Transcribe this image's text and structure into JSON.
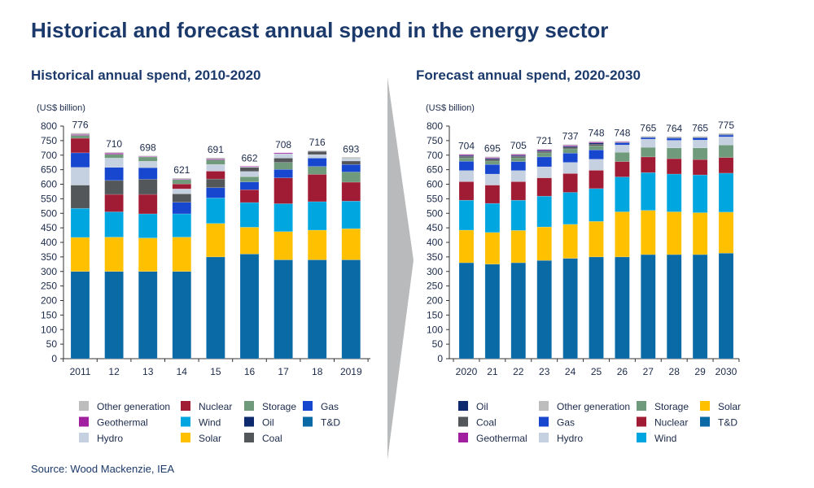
{
  "title": "Historical and forecast annual spend in the energy sector",
  "source": "Source: Wood Mackenzie, IEA",
  "colors": {
    "T&D": "#0a6aa6",
    "Solar": "#ffc000",
    "Wind": "#00a6e0",
    "Nuclear": "#a01c35",
    "Coal": "#53575a",
    "Hydro": "#c5d0e0",
    "Gas": "#1847cf",
    "Storage": "#6f9b7c",
    "Oil": "#0d2a6e",
    "Geothermal": "#a020a0",
    "Other generation": "#bdbdbd"
  },
  "chart_data": [
    {
      "type": "bar",
      "stacked": true,
      "title": "Historical annual spend, 2010-2020",
      "ylabel": "(US$ billion)",
      "ylim": [
        0,
        800
      ],
      "yticks": [
        0,
        50,
        100,
        150,
        200,
        250,
        300,
        350,
        400,
        450,
        500,
        550,
        600,
        650,
        700,
        750,
        800
      ],
      "grid": false,
      "legend_position": "bottom",
      "legend": [
        "Other generation",
        "Nuclear",
        "Storage",
        "Gas",
        "Geothermal",
        "Wind",
        "Oil",
        "T&D",
        "Hydro",
        "Solar",
        "Coal"
      ],
      "categories": [
        "2011",
        "12",
        "13",
        "14",
        "15",
        "16",
        "17",
        "18",
        "2019"
      ],
      "totals": [
        776,
        710,
        698,
        621,
        691,
        662,
        708,
        716,
        693
      ],
      "bars": [
        [
          [
            "T&D",
            300
          ],
          [
            "Solar",
            117
          ],
          [
            "Wind",
            100
          ],
          [
            "Coal",
            80
          ],
          [
            "Hydro",
            61
          ],
          [
            "Gas",
            50
          ],
          [
            "Nuclear",
            50
          ],
          [
            "Storage",
            10
          ],
          [
            "Geothermal",
            3
          ],
          [
            "Other generation",
            5
          ]
        ],
        [
          [
            "T&D",
            300
          ],
          [
            "Solar",
            118
          ],
          [
            "Wind",
            87
          ],
          [
            "Nuclear",
            60
          ],
          [
            "Coal",
            48
          ],
          [
            "Gas",
            45
          ],
          [
            "Hydro",
            32
          ],
          [
            "Storage",
            13
          ],
          [
            "Geothermal",
            4
          ],
          [
            "Other generation",
            3
          ]
        ],
        [
          [
            "T&D",
            300
          ],
          [
            "Solar",
            115
          ],
          [
            "Wind",
            83
          ],
          [
            "Nuclear",
            67
          ],
          [
            "Coal",
            52
          ],
          [
            "Gas",
            40
          ],
          [
            "Hydro",
            22
          ],
          [
            "Storage",
            15
          ],
          [
            "Geothermal",
            2
          ],
          [
            "Other generation",
            2
          ]
        ],
        [
          [
            "T&D",
            300
          ],
          [
            "Solar",
            118
          ],
          [
            "Wind",
            80
          ],
          [
            "Gas",
            40
          ],
          [
            "Coal",
            29
          ],
          [
            "Hydro",
            17
          ],
          [
            "Nuclear",
            17
          ],
          [
            "Storage",
            15
          ],
          [
            "Geothermal",
            2
          ],
          [
            "Other generation",
            3
          ]
        ],
        [
          [
            "T&D",
            350
          ],
          [
            "Solar",
            115
          ],
          [
            "Wind",
            88
          ],
          [
            "Gas",
            35
          ],
          [
            "Coal",
            30
          ],
          [
            "Nuclear",
            27
          ],
          [
            "Hydro",
            23
          ],
          [
            "Storage",
            16
          ],
          [
            "Geothermal",
            3
          ],
          [
            "Other generation",
            4
          ]
        ],
        [
          [
            "T&D",
            360
          ],
          [
            "Solar",
            92
          ],
          [
            "Wind",
            85
          ],
          [
            "Nuclear",
            44
          ],
          [
            "Gas",
            27
          ],
          [
            "Storage",
            18
          ],
          [
            "Hydro",
            18
          ],
          [
            "Coal",
            14
          ],
          [
            "Other generation",
            2
          ],
          [
            "Geothermal",
            2
          ]
        ],
        [
          [
            "T&D",
            340
          ],
          [
            "Solar",
            97
          ],
          [
            "Wind",
            96
          ],
          [
            "Nuclear",
            89
          ],
          [
            "Gas",
            29
          ],
          [
            "Storage",
            24
          ],
          [
            "Coal",
            15
          ],
          [
            "Hydro",
            15
          ],
          [
            "Geothermal",
            3
          ]
        ],
        [
          [
            "T&D",
            340
          ],
          [
            "Solar",
            102
          ],
          [
            "Wind",
            98
          ],
          [
            "Nuclear",
            94
          ],
          [
            "Storage",
            27
          ],
          [
            "Gas",
            29
          ],
          [
            "Hydro",
            12
          ],
          [
            "Coal",
            11
          ],
          [
            "Other generation",
            3
          ]
        ],
        [
          [
            "T&D",
            340
          ],
          [
            "Solar",
            107
          ],
          [
            "Wind",
            95
          ],
          [
            "Nuclear",
            65
          ],
          [
            "Storage",
            35
          ],
          [
            "Gas",
            26
          ],
          [
            "Coal",
            12
          ],
          [
            "Hydro",
            8
          ],
          [
            "Other generation",
            5
          ]
        ]
      ]
    },
    {
      "type": "bar",
      "stacked": true,
      "title": "Forecast annual spend, 2020-2030",
      "ylabel": "(US$ billion)",
      "ylim": [
        0,
        800
      ],
      "yticks": [
        0,
        50,
        100,
        150,
        200,
        250,
        300,
        350,
        400,
        450,
        500,
        550,
        600,
        650,
        700,
        750,
        800
      ],
      "grid": false,
      "legend_position": "bottom",
      "legend": [
        "Oil",
        "Other generation",
        "Storage",
        "Solar",
        "Coal",
        "Gas",
        "Nuclear",
        "T&D",
        "Geothermal",
        "Hydro",
        "Wind"
      ],
      "categories": [
        "2020",
        "21",
        "22",
        "23",
        "24",
        "25",
        "26",
        "27",
        "28",
        "29",
        "2030"
      ],
      "totals": [
        704,
        695,
        705,
        721,
        737,
        748,
        748,
        765,
        764,
        765,
        775
      ],
      "bars": [
        [
          [
            "T&D",
            330
          ],
          [
            "Solar",
            112
          ],
          [
            "Wind",
            103
          ],
          [
            "Nuclear",
            64
          ],
          [
            "Hydro",
            38
          ],
          [
            "Gas",
            32
          ],
          [
            "Storage",
            12
          ],
          [
            "Coal",
            5
          ],
          [
            "Oil",
            3
          ],
          [
            "Geothermal",
            3
          ],
          [
            "Other generation",
            2
          ]
        ],
        [
          [
            "T&D",
            325
          ],
          [
            "Solar",
            109
          ],
          [
            "Wind",
            100
          ],
          [
            "Nuclear",
            63
          ],
          [
            "Hydro",
            38
          ],
          [
            "Gas",
            33
          ],
          [
            "Storage",
            12
          ],
          [
            "Coal",
            6
          ],
          [
            "Oil",
            3
          ],
          [
            "Geothermal",
            3
          ],
          [
            "Other generation",
            3
          ]
        ],
        [
          [
            "T&D",
            330
          ],
          [
            "Solar",
            111
          ],
          [
            "Wind",
            104
          ],
          [
            "Nuclear",
            64
          ],
          [
            "Hydro",
            38
          ],
          [
            "Gas",
            31
          ],
          [
            "Storage",
            13
          ],
          [
            "Coal",
            5
          ],
          [
            "Oil",
            3
          ],
          [
            "Geothermal",
            3
          ],
          [
            "Other generation",
            3
          ]
        ],
        [
          [
            "T&D",
            338
          ],
          [
            "Solar",
            115
          ],
          [
            "Wind",
            106
          ],
          [
            "Nuclear",
            63
          ],
          [
            "Hydro",
            38
          ],
          [
            "Gas",
            34
          ],
          [
            "Storage",
            14
          ],
          [
            "Coal",
            5
          ],
          [
            "Oil",
            3
          ],
          [
            "Geothermal",
            3
          ],
          [
            "Other generation",
            2
          ]
        ],
        [
          [
            "T&D",
            345
          ],
          [
            "Solar",
            117
          ],
          [
            "Wind",
            110
          ],
          [
            "Nuclear",
            65
          ],
          [
            "Hydro",
            38
          ],
          [
            "Gas",
            32
          ],
          [
            "Storage",
            15
          ],
          [
            "Coal",
            6
          ],
          [
            "Oil",
            3
          ],
          [
            "Geothermal",
            3
          ],
          [
            "Other generation",
            3
          ]
        ],
        [
          [
            "T&D",
            350
          ],
          [
            "Solar",
            122
          ],
          [
            "Wind",
            113
          ],
          [
            "Nuclear",
            63
          ],
          [
            "Hydro",
            38
          ],
          [
            "Gas",
            32
          ],
          [
            "Storage",
            14
          ],
          [
            "Coal",
            6
          ],
          [
            "Oil",
            4
          ],
          [
            "Geothermal",
            3
          ],
          [
            "Other generation",
            3
          ]
        ],
        [
          [
            "T&D",
            350
          ],
          [
            "Solar",
            155
          ],
          [
            "Wind",
            120
          ],
          [
            "Nuclear",
            53
          ],
          [
            "Storage",
            32
          ],
          [
            "Hydro",
            25
          ],
          [
            "Gas",
            7
          ],
          [
            "Oil",
            2
          ],
          [
            "Geothermal",
            2
          ],
          [
            "Other generation",
            2
          ]
        ],
        [
          [
            "T&D",
            358
          ],
          [
            "Solar",
            152
          ],
          [
            "Wind",
            130
          ],
          [
            "Nuclear",
            54
          ],
          [
            "Storage",
            33
          ],
          [
            "Hydro",
            28
          ],
          [
            "Gas",
            5
          ],
          [
            "Oil",
            2
          ],
          [
            "Other generation",
            3
          ]
        ],
        [
          [
            "T&D",
            358
          ],
          [
            "Solar",
            147
          ],
          [
            "Wind",
            130
          ],
          [
            "Nuclear",
            53
          ],
          [
            "Storage",
            37
          ],
          [
            "Hydro",
            26
          ],
          [
            "Gas",
            7
          ],
          [
            "Oil",
            2
          ],
          [
            "Other generation",
            4
          ]
        ],
        [
          [
            "T&D",
            358
          ],
          [
            "Solar",
            144
          ],
          [
            "Wind",
            130
          ],
          [
            "Nuclear",
            53
          ],
          [
            "Storage",
            40
          ],
          [
            "Hydro",
            27
          ],
          [
            "Gas",
            7
          ],
          [
            "Oil",
            2
          ],
          [
            "Other generation",
            4
          ]
        ],
        [
          [
            "T&D",
            363
          ],
          [
            "Solar",
            141
          ],
          [
            "Wind",
            134
          ],
          [
            "Nuclear",
            54
          ],
          [
            "Storage",
            43
          ],
          [
            "Hydro",
            28
          ],
          [
            "Gas",
            6
          ],
          [
            "Oil",
            2
          ],
          [
            "Other generation",
            4
          ]
        ]
      ]
    }
  ]
}
